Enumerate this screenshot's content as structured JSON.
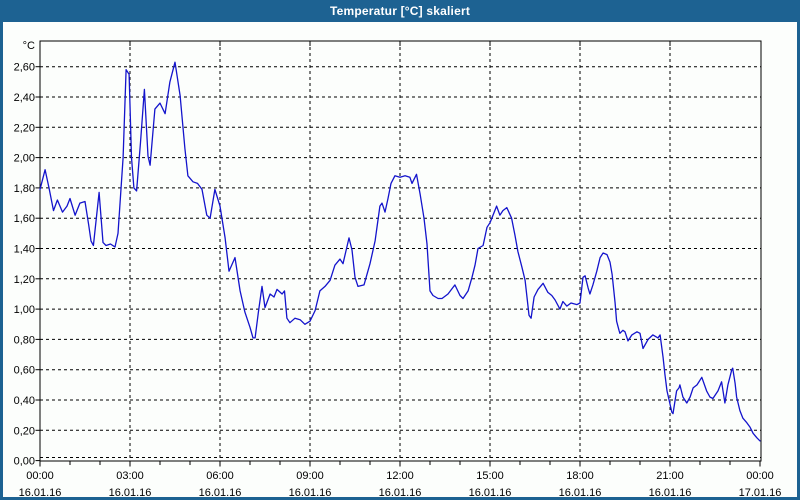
{
  "window": {
    "title": "Temperatur [°C] skaliert"
  },
  "colors": {
    "titlebar": "#1d6292",
    "window_border": "#1d6292",
    "background": "#fcfefc",
    "line": "#1414cc",
    "grid": "#000000",
    "axis": "#000000",
    "text": "#000000",
    "title_text": "#ffffff"
  },
  "chart_data": {
    "type": "line",
    "title": "Temperatur [°C] skaliert",
    "ylabel": "°C",
    "xlabel": "",
    "ylim": [
      0,
      2.6
    ],
    "y_tick_step": 0.2,
    "y_ticks": [
      "0,00",
      "0,20",
      "0,40",
      "0,60",
      "0,80",
      "1,00",
      "1,20",
      "1,40",
      "1,60",
      "1,80",
      "2,00",
      "2,20",
      "2,40",
      "2,60"
    ],
    "y_tick_values": [
      0,
      0.2,
      0.4,
      0.6,
      0.8,
      1.0,
      1.2,
      1.4,
      1.6,
      1.8,
      2.0,
      2.2,
      2.4,
      2.6
    ],
    "xlim_hours": [
      0,
      24
    ],
    "x_ticks": [
      {
        "hour": 0,
        "time": "00:00",
        "date": "16.01.16"
      },
      {
        "hour": 3,
        "time": "03:00",
        "date": "16.01.16"
      },
      {
        "hour": 6,
        "time": "06:00",
        "date": "16.01.16"
      },
      {
        "hour": 9,
        "time": "09:00",
        "date": "16.01.16"
      },
      {
        "hour": 12,
        "time": "12:00",
        "date": "16.01.16"
      },
      {
        "hour": 15,
        "time": "15:00",
        "date": "16.01.16"
      },
      {
        "hour": 18,
        "time": "18:00",
        "date": "16.01.16"
      },
      {
        "hour": 21,
        "time": "21:00",
        "date": "16.01.16"
      },
      {
        "hour": 24,
        "time": "00:00",
        "date": "17.01.16"
      }
    ],
    "minor_x_tick_every_hours": 1,
    "grid": "dashed",
    "legend": "none",
    "series": [
      {
        "name": "Temperatur",
        "points": [
          [
            0.0,
            1.79
          ],
          [
            0.17,
            1.92
          ],
          [
            0.3,
            1.8
          ],
          [
            0.45,
            1.65
          ],
          [
            0.58,
            1.72
          ],
          [
            0.75,
            1.64
          ],
          [
            0.9,
            1.68
          ],
          [
            1.0,
            1.73
          ],
          [
            1.17,
            1.62
          ],
          [
            1.33,
            1.7
          ],
          [
            1.5,
            1.71
          ],
          [
            1.62,
            1.56
          ],
          [
            1.7,
            1.45
          ],
          [
            1.78,
            1.42
          ],
          [
            1.97,
            1.77
          ],
          [
            2.1,
            1.44
          ],
          [
            2.2,
            1.42
          ],
          [
            2.35,
            1.43
          ],
          [
            2.5,
            1.41
          ],
          [
            2.6,
            1.5
          ],
          [
            2.77,
            2.0
          ],
          [
            2.87,
            2.58
          ],
          [
            2.97,
            2.55
          ],
          [
            3.05,
            2.0
          ],
          [
            3.13,
            1.8
          ],
          [
            3.22,
            1.78
          ],
          [
            3.35,
            2.1
          ],
          [
            3.48,
            2.45
          ],
          [
            3.6,
            2.01
          ],
          [
            3.67,
            1.95
          ],
          [
            3.83,
            2.32
          ],
          [
            4.0,
            2.36
          ],
          [
            4.17,
            2.29
          ],
          [
            4.33,
            2.5
          ],
          [
            4.5,
            2.63
          ],
          [
            4.67,
            2.41
          ],
          [
            4.83,
            2.06
          ],
          [
            4.93,
            1.88
          ],
          [
            5.1,
            1.84
          ],
          [
            5.25,
            1.83
          ],
          [
            5.4,
            1.79
          ],
          [
            5.56,
            1.62
          ],
          [
            5.67,
            1.6
          ],
          [
            5.83,
            1.79
          ],
          [
            6.0,
            1.68
          ],
          [
            6.17,
            1.47
          ],
          [
            6.3,
            1.25
          ],
          [
            6.5,
            1.34
          ],
          [
            6.67,
            1.12
          ],
          [
            6.83,
            0.98
          ],
          [
            7.0,
            0.88
          ],
          [
            7.1,
            0.81
          ],
          [
            7.17,
            0.81
          ],
          [
            7.28,
            0.98
          ],
          [
            7.4,
            1.15
          ],
          [
            7.5,
            1.01
          ],
          [
            7.67,
            1.1
          ],
          [
            7.8,
            1.08
          ],
          [
            7.9,
            1.13
          ],
          [
            8.07,
            1.1
          ],
          [
            8.15,
            1.12
          ],
          [
            8.23,
            0.94
          ],
          [
            8.33,
            0.91
          ],
          [
            8.5,
            0.94
          ],
          [
            8.67,
            0.93
          ],
          [
            8.83,
            0.9
          ],
          [
            9.0,
            0.92
          ],
          [
            9.17,
            0.99
          ],
          [
            9.33,
            1.12
          ],
          [
            9.5,
            1.15
          ],
          [
            9.67,
            1.19
          ],
          [
            9.83,
            1.29
          ],
          [
            10.0,
            1.33
          ],
          [
            10.1,
            1.3
          ],
          [
            10.3,
            1.47
          ],
          [
            10.4,
            1.39
          ],
          [
            10.5,
            1.21
          ],
          [
            10.6,
            1.15
          ],
          [
            10.8,
            1.16
          ],
          [
            11.0,
            1.3
          ],
          [
            11.17,
            1.45
          ],
          [
            11.33,
            1.68
          ],
          [
            11.4,
            1.7
          ],
          [
            11.5,
            1.64
          ],
          [
            11.6,
            1.73
          ],
          [
            11.7,
            1.83
          ],
          [
            11.83,
            1.88
          ],
          [
            12.0,
            1.87
          ],
          [
            12.17,
            1.88
          ],
          [
            12.33,
            1.87
          ],
          [
            12.4,
            1.83
          ],
          [
            12.55,
            1.89
          ],
          [
            12.67,
            1.76
          ],
          [
            12.8,
            1.6
          ],
          [
            12.9,
            1.43
          ],
          [
            13.0,
            1.12
          ],
          [
            13.1,
            1.09
          ],
          [
            13.27,
            1.07
          ],
          [
            13.4,
            1.07
          ],
          [
            13.6,
            1.1
          ],
          [
            13.83,
            1.16
          ],
          [
            14.0,
            1.09
          ],
          [
            14.1,
            1.07
          ],
          [
            14.27,
            1.12
          ],
          [
            14.4,
            1.21
          ],
          [
            14.5,
            1.29
          ],
          [
            14.6,
            1.4
          ],
          [
            14.77,
            1.42
          ],
          [
            14.9,
            1.54
          ],
          [
            15.0,
            1.57
          ],
          [
            15.1,
            1.62
          ],
          [
            15.22,
            1.68
          ],
          [
            15.33,
            1.62
          ],
          [
            15.43,
            1.65
          ],
          [
            15.56,
            1.67
          ],
          [
            15.72,
            1.6
          ],
          [
            15.83,
            1.49
          ],
          [
            15.93,
            1.38
          ],
          [
            16.06,
            1.28
          ],
          [
            16.17,
            1.19
          ],
          [
            16.3,
            0.96
          ],
          [
            16.37,
            0.94
          ],
          [
            16.47,
            1.08
          ],
          [
            16.6,
            1.13
          ],
          [
            16.77,
            1.17
          ],
          [
            16.93,
            1.11
          ],
          [
            17.06,
            1.09
          ],
          [
            17.17,
            1.06
          ],
          [
            17.33,
            1.0
          ],
          [
            17.43,
            1.05
          ],
          [
            17.56,
            1.02
          ],
          [
            17.7,
            1.04
          ],
          [
            17.9,
            1.03
          ],
          [
            18.0,
            1.04
          ],
          [
            18.1,
            1.21
          ],
          [
            18.17,
            1.22
          ],
          [
            18.27,
            1.14
          ],
          [
            18.33,
            1.1
          ],
          [
            18.43,
            1.16
          ],
          [
            18.56,
            1.25
          ],
          [
            18.67,
            1.34
          ],
          [
            18.77,
            1.37
          ],
          [
            18.9,
            1.36
          ],
          [
            19.0,
            1.31
          ],
          [
            19.07,
            1.23
          ],
          [
            19.17,
            1.04
          ],
          [
            19.22,
            0.92
          ],
          [
            19.3,
            0.86
          ],
          [
            19.33,
            0.84
          ],
          [
            19.43,
            0.86
          ],
          [
            19.5,
            0.85
          ],
          [
            19.6,
            0.79
          ],
          [
            19.73,
            0.83
          ],
          [
            19.9,
            0.85
          ],
          [
            20.0,
            0.84
          ],
          [
            20.1,
            0.74
          ],
          [
            20.27,
            0.8
          ],
          [
            20.43,
            0.83
          ],
          [
            20.6,
            0.81
          ],
          [
            20.67,
            0.83
          ],
          [
            20.77,
            0.68
          ],
          [
            20.83,
            0.57
          ],
          [
            20.9,
            0.46
          ],
          [
            20.97,
            0.4
          ],
          [
            21.06,
            0.32
          ],
          [
            21.1,
            0.31
          ],
          [
            21.22,
            0.46
          ],
          [
            21.3,
            0.48
          ],
          [
            21.33,
            0.5
          ],
          [
            21.43,
            0.42
          ],
          [
            21.56,
            0.38
          ],
          [
            21.67,
            0.42
          ],
          [
            21.77,
            0.48
          ],
          [
            21.9,
            0.5
          ],
          [
            22.06,
            0.55
          ],
          [
            22.22,
            0.46
          ],
          [
            22.33,
            0.42
          ],
          [
            22.43,
            0.41
          ],
          [
            22.6,
            0.46
          ],
          [
            22.72,
            0.52
          ],
          [
            22.83,
            0.38
          ],
          [
            22.93,
            0.5
          ],
          [
            23.06,
            0.6
          ],
          [
            23.09,
            0.61
          ],
          [
            23.17,
            0.51
          ],
          [
            23.22,
            0.42
          ],
          [
            23.33,
            0.33
          ],
          [
            23.43,
            0.28
          ],
          [
            23.56,
            0.25
          ],
          [
            23.67,
            0.22
          ],
          [
            23.77,
            0.18
          ],
          [
            23.9,
            0.15
          ],
          [
            24.0,
            0.13
          ]
        ]
      }
    ]
  }
}
